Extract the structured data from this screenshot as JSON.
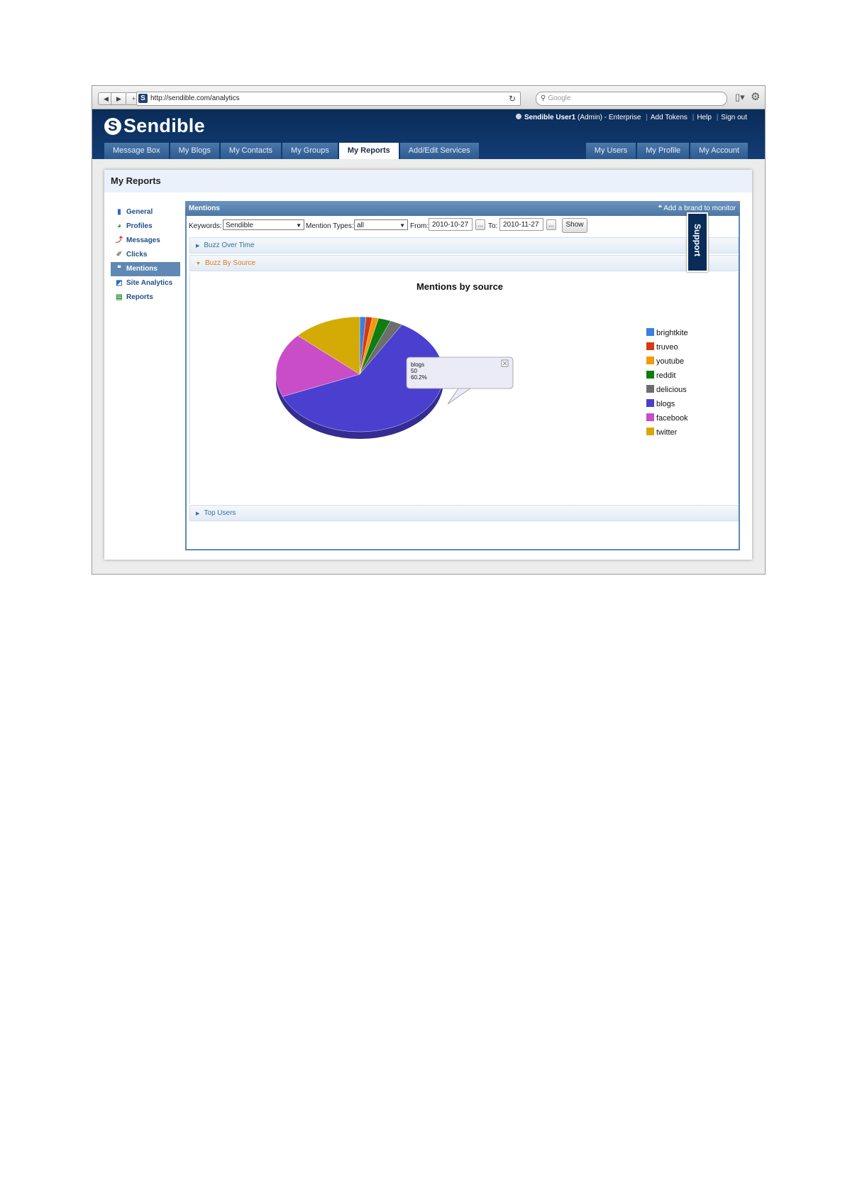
{
  "browser": {
    "url": "http://sendible.com/analytics",
    "search_placeholder": "Google"
  },
  "header": {
    "logo": "Sendible",
    "user": "Sendible User1",
    "user_role": "(Admin)",
    "plan": "- Enterprise",
    "links": [
      "Add Tokens",
      "Help",
      "Sign out"
    ]
  },
  "nav": {
    "left": [
      "Message Box",
      "My Blogs",
      "My Contacts",
      "My Groups",
      "My Reports",
      "Add/Edit Services"
    ],
    "right": [
      "My Users",
      "My Profile",
      "My Account"
    ],
    "active": "My Reports"
  },
  "page": {
    "title": "My Reports"
  },
  "sidebar": {
    "items": [
      {
        "label": "General",
        "icon": "bar-chart-icon"
      },
      {
        "label": "Profiles",
        "icon": "pie-icon"
      },
      {
        "label": "Messages",
        "icon": "trend-icon"
      },
      {
        "label": "Clicks",
        "icon": "cursor-icon"
      },
      {
        "label": "Mentions",
        "icon": "speech-icon"
      },
      {
        "label": "Site Analytics",
        "icon": "analytics-icon"
      },
      {
        "label": "Reports",
        "icon": "report-icon"
      }
    ],
    "active": "Mentions"
  },
  "mentions": {
    "title": "Mentions",
    "add_brand": "Add a brand to monitor",
    "filters": {
      "keywords_label": "Keywords:",
      "keywords_value": "Sendible",
      "types_label": "Mention Types:",
      "types_value": "all",
      "from_label": "From:",
      "from_value": "2010-10-27",
      "to_label": "To:",
      "to_value": "2010-11-27",
      "dots": "...",
      "show": "Show"
    },
    "sections": [
      "Buzz Over Time",
      "Buzz By Source",
      "Top Users"
    ]
  },
  "chart_data": {
    "type": "pie",
    "title": "Mentions by source",
    "categories": [
      "brightkite",
      "truveo",
      "youtube",
      "reddit",
      "delicious",
      "blogs",
      "facebook",
      "twitter"
    ],
    "values": [
      1,
      1,
      1,
      2,
      2,
      50,
      15,
      11
    ],
    "colors": [
      "#3a7fe0",
      "#d63a12",
      "#f39a0c",
      "#0f7d10",
      "#6d6d6d",
      "#4a3fcf",
      "#c94dc7",
      "#d4aa05"
    ],
    "legend": "right",
    "tooltip": {
      "label": "blogs",
      "value": "50",
      "percent": "60.2%"
    }
  },
  "support": "Support"
}
